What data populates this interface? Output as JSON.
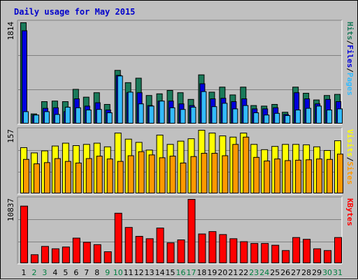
{
  "chart_data": {
    "type": "bar",
    "title": "Daily usage for May 2015",
    "categories": [
      "1",
      "2",
      "3",
      "4",
      "5",
      "6",
      "7",
      "8",
      "9",
      "10",
      "11",
      "12",
      "13",
      "14",
      "15",
      "16",
      "17",
      "18",
      "19",
      "20",
      "21",
      "22",
      "23",
      "24",
      "25",
      "26",
      "27",
      "28",
      "29",
      "30",
      "31"
    ],
    "weekend_days": [
      "2",
      "3",
      "9",
      "10",
      "16",
      "17",
      "23",
      "24",
      "30",
      "31"
    ],
    "colors": {
      "hits": "#1a7a5a",
      "files": "#0000dd",
      "pages": "#33bbff",
      "visits": "#ffff00",
      "sites": "#ff9900",
      "kbytes": "#ff0000",
      "weekday_label": "#000000",
      "weekend_label": "#008040"
    },
    "panels": [
      {
        "name": "requests",
        "max_label": "1814",
        "ymax": 1814,
        "legend": [
          {
            "text": "Pages",
            "color": "#33bbff"
          },
          {
            "text": "/",
            "color": "#000000"
          },
          {
            "text": "Files",
            "color": "#0000dd"
          },
          {
            "text": "/",
            "color": "#000000"
          },
          {
            "text": "Hits",
            "color": "#1a7a5a"
          }
        ],
        "series": [
          {
            "name": "Hits",
            "key": "hits",
            "values": [
              1814,
              180,
              400,
              410,
              400,
              620,
              480,
              560,
              350,
              960,
              740,
              820,
              510,
              540,
              600,
              560,
              440,
              880,
              570,
              660,
              520,
              660,
              330,
              320,
              350,
              210,
              660,
              550,
              430,
              510,
              530
            ]
          },
          {
            "name": "Files",
            "key": "files",
            "values": [
              1670,
              160,
              280,
              290,
              220,
              450,
              320,
              380,
              250,
              870,
              560,
              560,
              330,
              410,
              410,
              360,
              330,
              720,
              450,
              460,
              400,
              450,
              270,
              270,
              290,
              170,
              560,
              450,
              360,
              440,
              400
            ]
          },
          {
            "name": "Pages",
            "key": "pages",
            "values": [
              220,
              160,
              220,
              170,
              300,
              290,
              250,
              260,
              200,
              860,
              570,
              360,
              320,
              410,
              290,
              260,
              300,
              580,
              310,
              370,
              270,
              330,
              200,
              160,
              190,
              150,
              250,
              280,
              320,
              250,
              270
            ]
          }
        ]
      },
      {
        "name": "visitors",
        "max_label": "157",
        "ymax": 157,
        "legend": [
          {
            "text": "Sites",
            "color": "#ff9900"
          },
          {
            "text": "/",
            "color": "#000000"
          },
          {
            "text": "Visits",
            "color": "#ffff00"
          }
        ],
        "series": [
          {
            "name": "Visits",
            "key": "visits",
            "values": [
              114,
              101,
              106,
              118,
              125,
              119,
              122,
              125,
              116,
              150,
              135,
              127,
              108,
              145,
              122,
              130,
              136,
              157,
              150,
              143,
              140,
              150,
              122,
              109,
              117,
              122,
              122,
              121,
              116,
              107,
              131
            ]
          },
          {
            "name": "Sites",
            "key": "sites",
            "values": [
              85,
              74,
              77,
              87,
              80,
              76,
              87,
              93,
              86,
              80,
              94,
              104,
              96,
              89,
              93,
              76,
              92,
              100,
              100,
              94,
              122,
              140,
              90,
              81,
              86,
              82,
              83,
              84,
              86,
              85,
              98
            ]
          }
        ]
      },
      {
        "name": "traffic",
        "max_label": "10837",
        "ymax": 10837,
        "legend": [
          {
            "text": "KBytes",
            "color": "#ff0000"
          }
        ],
        "series": [
          {
            "name": "KBytes",
            "key": "kbytes",
            "values": [
              9700,
              1500,
              2900,
              2500,
              2800,
              4300,
              3600,
              3200,
              2000,
              8500,
              6100,
              4600,
              4200,
              6000,
              3500,
              4000,
              10837,
              5000,
              5400,
              4900,
              4200,
              3700,
              3400,
              3400,
              3100,
              2200,
              4400,
              4100,
              2500,
              2200,
              4400
            ]
          }
        ]
      }
    ]
  }
}
